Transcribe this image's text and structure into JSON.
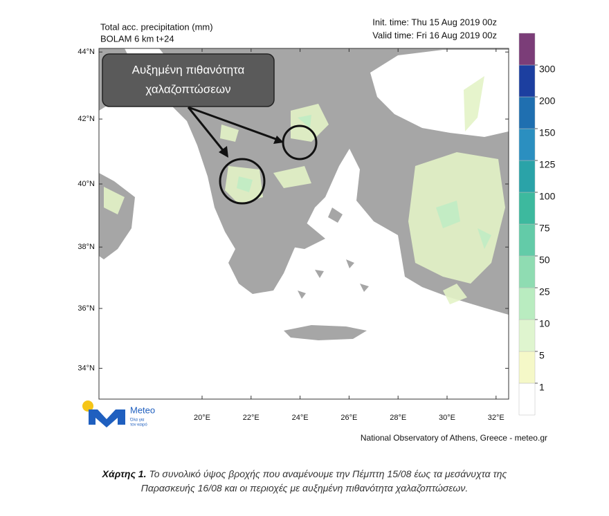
{
  "header": {
    "title": "Total acc. precipitation (mm)",
    "model": "BOLAM 6 km t+24",
    "init_time": "Init. time: Thu 15 Aug 2019 00z",
    "valid_time": "Valid time: Fri 16 Aug 2019 00z"
  },
  "map": {
    "lat_ticks": [
      {
        "value": 44,
        "label": "44°N"
      },
      {
        "value": 42,
        "label": "42°N"
      },
      {
        "value": 40,
        "label": "40°N"
      },
      {
        "value": 38,
        "label": "38°N"
      },
      {
        "value": 36,
        "label": "36°N"
      },
      {
        "value": 34,
        "label": "34°N"
      }
    ],
    "lon_ticks": [
      {
        "value": 20,
        "label": "20°E"
      },
      {
        "value": 22,
        "label": "22°E"
      },
      {
        "value": 24,
        "label": "24°E"
      },
      {
        "value": 26,
        "label": "26°E"
      },
      {
        "value": 28,
        "label": "28°E"
      },
      {
        "value": 30,
        "label": "30°E"
      },
      {
        "value": 32,
        "label": "32°E"
      }
    ],
    "annotation": [
      "Αυξημένη πιθανότητα",
      "χαλαζοπτώσεων"
    ]
  },
  "colorbar": {
    "levels": [
      1,
      5,
      10,
      25,
      50,
      75,
      100,
      125,
      150,
      200,
      300
    ],
    "colors": [
      "#ffffff",
      "#f5f8c8",
      "#dff5cf",
      "#b9ecc0",
      "#8fdcb2",
      "#63cba8",
      "#3db99e",
      "#2aa3a8",
      "#2b8fc0",
      "#1f6fb0",
      "#1c3fa0",
      "#7b3d78"
    ]
  },
  "logo": {
    "name": "Meteo",
    "tagline": [
      "Όλα για",
      "τον καιρό"
    ]
  },
  "credit": "National Observatory of Athens, Greece - meteo.gr",
  "caption": {
    "label": "Χάρτης 1.",
    "lines": [
      "Το συνολικό ύψος βροχής που αναμένουμε την Πέμπτη 15/08 έως τα μεσάνυχτα της",
      "Παρασκευής 16/08 και οι περιοχές με αυξημένη πιθανότητα χαλαζοπτώσεων."
    ]
  }
}
